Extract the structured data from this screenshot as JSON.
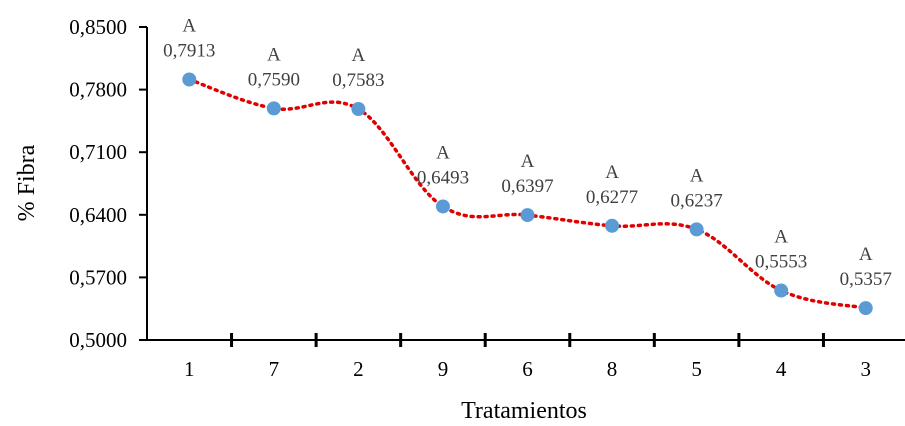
{
  "chart_data": {
    "type": "line",
    "xlabel": "Tratamientos",
    "ylabel": "% Fibra",
    "ylim": [
      0.5,
      0.85
    ],
    "y_ticks": [
      0.5,
      0.57,
      0.64,
      0.71,
      0.78,
      0.85
    ],
    "y_tick_labels": [
      "0,5000",
      "0,5700",
      "0,6400",
      "0,7100",
      "0,7800",
      "0,8500"
    ],
    "categories": [
      "1",
      "7",
      "2",
      "9",
      "6",
      "8",
      "5",
      "4",
      "3"
    ],
    "values": [
      0.7913,
      0.759,
      0.7583,
      0.6493,
      0.6397,
      0.6277,
      0.6237,
      0.5553,
      0.5357
    ],
    "value_labels": [
      "0,7913",
      "0,7590",
      "0,7583",
      "0,6493",
      "0,6397",
      "0,6277",
      "0,6237",
      "0,5553",
      "0,5357"
    ],
    "group_labels": [
      "A",
      "A",
      "A",
      "A",
      "A",
      "A",
      "A",
      "A",
      "A"
    ],
    "colors": {
      "marker": "#5b9bd5",
      "trend_line": "#e00000",
      "axis": "#000000"
    },
    "line_style": "dotted",
    "grid": false,
    "legend": false
  }
}
